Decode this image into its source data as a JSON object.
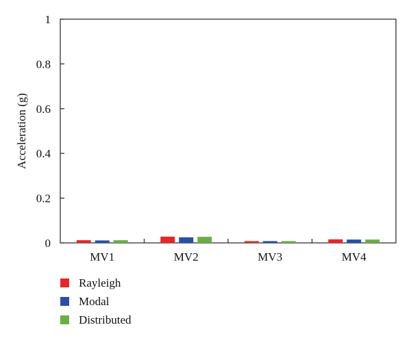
{
  "chart_data": {
    "type": "bar",
    "title": "",
    "xlabel": "",
    "ylabel": "Acceleration (g)",
    "ylim": [
      0,
      1
    ],
    "yticks": [
      0,
      0.2,
      0.4,
      0.6,
      0.8,
      1
    ],
    "ytick_labels": [
      "0",
      "0.2",
      "0.4",
      "0.6",
      "0.8",
      "1"
    ],
    "categories": [
      "MV1",
      "MV2",
      "MV3",
      "MV4"
    ],
    "series": [
      {
        "name": "Rayleigh",
        "color": "#e8262a",
        "values": [
          0.012,
          0.028,
          0.008,
          0.016
        ]
      },
      {
        "name": "Modal",
        "color": "#2a4fa8",
        "values": [
          0.011,
          0.025,
          0.008,
          0.015
        ]
      },
      {
        "name": "Distributed",
        "color": "#6aaf45",
        "values": [
          0.012,
          0.027,
          0.008,
          0.015
        ]
      }
    ],
    "grid": false,
    "legend_position": "bottom-left"
  }
}
